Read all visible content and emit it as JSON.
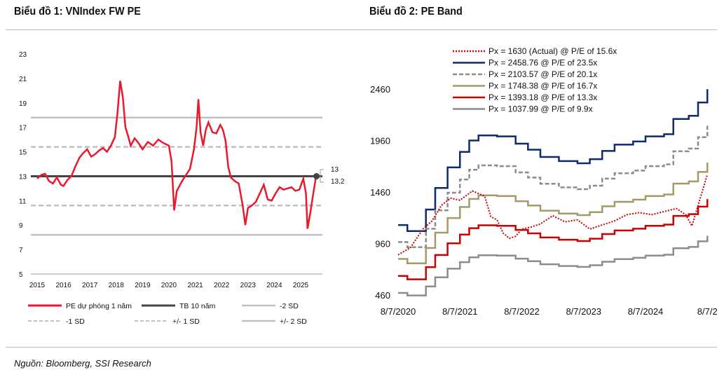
{
  "titles": {
    "chart1": "Biểu đồ 1: VNIndex FW PE",
    "chart2": "Biểu đồ 2: PE Band"
  },
  "source": "Nguồn: Bloomberg, SSI Research",
  "chart_data": [
    {
      "type": "line",
      "title": "Biểu đồ 1: VNIndex FW PE",
      "ylim": [
        5,
        23
      ],
      "yticks": [
        "23",
        "21",
        "19",
        "17",
        "15",
        "13",
        "11",
        "9",
        "7",
        "5"
      ],
      "xticks": [
        "2015",
        "2016",
        "2017",
        "2018",
        "2019",
        "2020",
        "2021",
        "2022",
        "2023",
        "2024",
        "2025"
      ],
      "series": [
        {
          "name": "PE dự phóng 1 năm",
          "color": "#e8192c",
          "x": [
            2015.0,
            2015.15,
            2015.3,
            2015.45,
            2015.6,
            2015.75,
            2015.9,
            2016.0,
            2016.15,
            2016.3,
            2016.45,
            2016.6,
            2016.75,
            2016.9,
            2017.05,
            2017.2,
            2017.35,
            2017.5,
            2017.65,
            2017.8,
            2017.95,
            2018.05,
            2018.15,
            2018.25,
            2018.35,
            2018.45,
            2018.55,
            2018.7,
            2018.85,
            2019.0,
            2019.2,
            2019.4,
            2019.6,
            2019.8,
            2020.0,
            2020.1,
            2020.2,
            2020.3,
            2020.5,
            2020.65,
            2020.8,
            2020.95,
            2021.05,
            2021.12,
            2021.2,
            2021.3,
            2021.4,
            2021.5,
            2021.65,
            2021.8,
            2021.95,
            2022.05,
            2022.15,
            2022.25,
            2022.35,
            2022.5,
            2022.65,
            2022.8,
            2022.9,
            2023.0,
            2023.15,
            2023.3,
            2023.45,
            2023.6,
            2023.75,
            2023.9,
            2024.05,
            2024.2,
            2024.35,
            2024.5,
            2024.65,
            2024.8,
            2024.95,
            2025.1,
            2025.2,
            2025.26,
            2025.35,
            2025.45,
            2025.6
          ],
          "values": [
            12.8,
            13.1,
            13.2,
            12.6,
            12.4,
            12.9,
            12.3,
            12.2,
            12.7,
            13.0,
            13.8,
            14.5,
            14.9,
            15.2,
            14.6,
            14.8,
            15.1,
            15.3,
            15.0,
            15.5,
            16.2,
            18.2,
            20.8,
            19.5,
            17.0,
            16.3,
            15.5,
            16.1,
            15.7,
            15.2,
            15.8,
            15.5,
            16.0,
            15.7,
            15.5,
            14.2,
            10.2,
            11.8,
            12.6,
            13.1,
            13.6,
            15.2,
            17.0,
            19.3,
            16.6,
            15.5,
            16.8,
            17.4,
            16.6,
            16.5,
            17.2,
            16.8,
            15.9,
            13.8,
            12.9,
            12.6,
            12.4,
            10.6,
            9.0,
            10.4,
            10.6,
            10.9,
            11.6,
            12.3,
            11.1,
            11.0,
            11.6,
            12.1,
            11.9,
            12.0,
            12.1,
            11.8,
            11.9,
            12.8,
            11.6,
            8.7,
            9.8,
            11.2,
            13.2
          ]
        },
        {
          "name": "TB 10 năm",
          "value": 13,
          "color": "#444"
        },
        {
          "name": "+2 SD",
          "value": 17.8,
          "color": "#c0c0c0"
        },
        {
          "name": "+1 SD",
          "value": 15.4,
          "color": "#c0c0c0",
          "dashed": true
        },
        {
          "name": "-1 SD",
          "value": 10.6,
          "color": "#c0c0c0",
          "dashed": true
        },
        {
          "name": "-2 SD",
          "value": 8.2,
          "color": "#c0c0c0"
        }
      ],
      "end_labels": [
        "13",
        "13.2"
      ],
      "legend": [
        "PE dự phóng 1 năm",
        "TB 10 năm",
        "-2 SD",
        "-1 SD",
        "+/- 1 SD",
        "+/- 2 SD"
      ]
    },
    {
      "type": "line",
      "title": "Biểu đồ 2: PE Band",
      "ylim": [
        460,
        2460
      ],
      "yticks": [
        "2460",
        "1960",
        "1460",
        "960",
        "460"
      ],
      "xticks": [
        "8/7/2020",
        "8/7/2021",
        "8/7/2022",
        "8/7/2023",
        "8/7/2024",
        "8/7/2"
      ],
      "x_years_since_start": [
        0,
        0.15,
        0.45,
        0.6,
        0.8,
        1.0,
        1.15,
        1.3,
        1.6,
        1.9,
        2.1,
        2.3,
        2.6,
        2.9,
        3.1,
        3.3,
        3.5,
        3.8,
        4.0,
        4.3,
        4.45,
        4.7,
        4.85,
        5.0
      ],
      "eps": [
        48.5,
        46.0,
        54.9,
        63.8,
        72.3,
        78.7,
        83.4,
        85.5,
        85.1,
        82.1,
        79.6,
        76.6,
        74.9,
        74.0,
        75.7,
        79.1,
        81.7,
        83.0,
        85.1,
        86.0,
        92.3,
        93.6,
        99.1,
        104.6
      ],
      "bands": [
        {
          "label": "Px = 2458.76 @ P/E of 23.5x",
          "multiple": 23.5,
          "color": "#0f2a6e"
        },
        {
          "label": "Px = 2103.57 @ P/E of 20.1x",
          "multiple": 20.1,
          "color": "#8c8c8c",
          "dashed": true
        },
        {
          "label": "Px = 1748.38 @ P/E of 16.7x",
          "multiple": 16.7,
          "color": "#a39a6a"
        },
        {
          "label": "Px = 1393.18 @ P/E of 13.3x",
          "multiple": 13.3,
          "color": "#cc0000"
        },
        {
          "label": "Px = 1037.99 @ P/E of 9.9x",
          "multiple": 9.9,
          "color": "#8c8c8c"
        }
      ],
      "actual": {
        "label": "Px = 1630 (Actual) @ P/E of 15.6x",
        "color": "#cc0000",
        "x": [
          0,
          0.2,
          0.4,
          0.55,
          0.7,
          0.85,
          1.0,
          1.2,
          1.4,
          1.5,
          1.6,
          1.7,
          1.8,
          1.9,
          2.0,
          2.15,
          2.3,
          2.5,
          2.7,
          2.9,
          3.1,
          3.3,
          3.5,
          3.7,
          3.9,
          4.1,
          4.3,
          4.5,
          4.65,
          4.75,
          4.85,
          5.0
        ],
        "values": [
          850,
          920,
          1100,
          1180,
          1330,
          1400,
          1380,
          1470,
          1420,
          1220,
          1190,
          1060,
          1010,
          1030,
          1100,
          1120,
          1150,
          1230,
          1170,
          1190,
          1100,
          1140,
          1180,
          1240,
          1260,
          1240,
          1270,
          1300,
          1240,
          1130,
          1330,
          1630
        ]
      }
    }
  ]
}
